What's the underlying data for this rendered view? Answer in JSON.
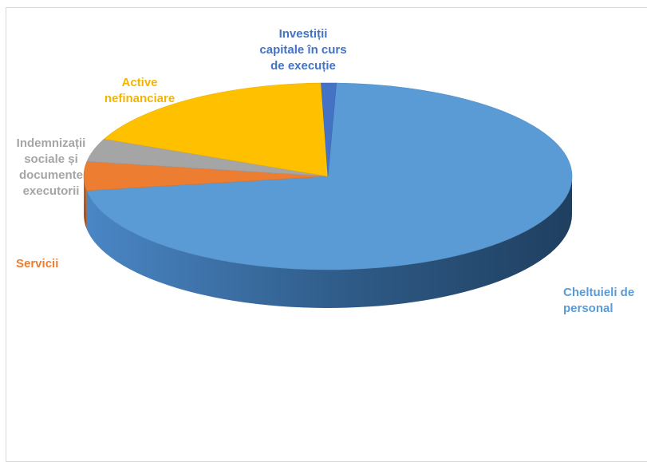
{
  "chart_data": {
    "type": "pie",
    "style": "3d",
    "title": "",
    "legend": "none",
    "slices": [
      {
        "label": "Cheltuieli de\npersonal",
        "value": 72.0,
        "color": "#5b9bd5"
      },
      {
        "label": "Servicii",
        "value": 5.0,
        "color": "#ed7d31"
      },
      {
        "label": "Indemnizații\nsociale și\ndocumente\nexecutorii",
        "value": 4.0,
        "color": "#a5a5a5"
      },
      {
        "label": "Active\nnefinanciare",
        "value": 18.0,
        "color": "#ffc000"
      },
      {
        "label": "Investiții\ncapitale în curs\nde execuție",
        "value": 1.0,
        "color": "#4472c4"
      }
    ]
  },
  "label_colors": {
    "Cheltuieli de personal": "#5b9bd5",
    "Servicii": "#ed7d31",
    "Indemnizații sociale și documente executorii": "#a5a5a5",
    "Active nefinanciare": "#ffc000",
    "Investiții capitale în curs de execuție": "#4472c4"
  }
}
